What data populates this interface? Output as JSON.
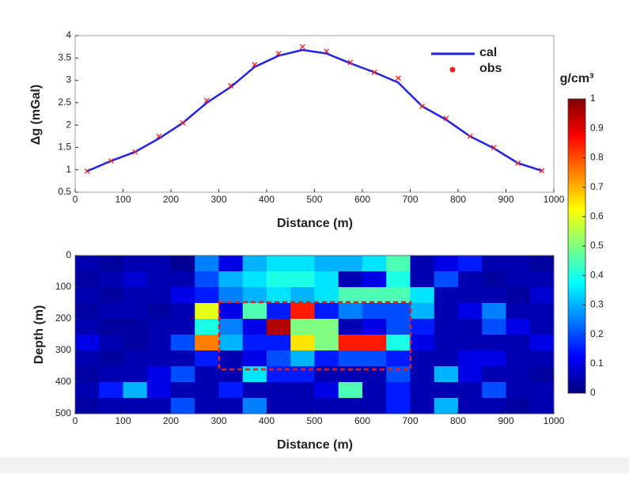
{
  "chart_data": [
    {
      "type": "line",
      "xlabel": "Distance (m)",
      "ylabel": "Δg (mGal)",
      "x": [
        25,
        75,
        125,
        175,
        225,
        275,
        325,
        375,
        425,
        475,
        525,
        575,
        625,
        675,
        725,
        775,
        825,
        875,
        925,
        975
      ],
      "series": [
        {
          "name": "cal",
          "color": "#2323e6",
          "mode": "line",
          "values": [
            0.97,
            1.2,
            1.4,
            1.7,
            2.05,
            2.5,
            2.85,
            3.3,
            3.55,
            3.68,
            3.6,
            3.38,
            3.18,
            2.95,
            2.42,
            2.12,
            1.75,
            1.48,
            1.15,
            0.98
          ]
        },
        {
          "name": "obs",
          "color": "#ee2222",
          "mode": "markers",
          "values": [
            0.97,
            1.2,
            1.4,
            1.75,
            2.05,
            2.55,
            2.88,
            3.35,
            3.6,
            3.75,
            3.65,
            3.4,
            3.18,
            3.05,
            2.42,
            2.15,
            1.75,
            1.5,
            1.15,
            0.98
          ]
        }
      ],
      "xlim": [
        0,
        1000
      ],
      "xticks": [
        0,
        100,
        200,
        300,
        400,
        500,
        600,
        700,
        800,
        900,
        1000
      ],
      "ylim": [
        0.5,
        4
      ],
      "yticks": [
        0.5,
        1,
        1.5,
        2,
        2.5,
        3,
        3.5,
        4
      ]
    },
    {
      "type": "heatmap",
      "xlabel": "Distance (m)",
      "ylabel": "Depth (m)",
      "x": [
        25,
        75,
        125,
        175,
        225,
        275,
        325,
        375,
        425,
        475,
        525,
        575,
        625,
        675,
        725,
        775,
        825,
        875,
        925,
        975
      ],
      "y": [
        25,
        75,
        125,
        175,
        225,
        275,
        325,
        375,
        425,
        475
      ],
      "values": [
        [
          0.05,
          0.03,
          0.05,
          0.05,
          0.02,
          0.25,
          0.1,
          0.3,
          0.35,
          0.35,
          0.3,
          0.3,
          0.35,
          0.45,
          0.05,
          0.1,
          0.15,
          0.05,
          0.05,
          0.03
        ],
        [
          0.03,
          0.05,
          0.08,
          0.05,
          0.05,
          0.2,
          0.3,
          0.35,
          0.4,
          0.4,
          0.35,
          0.05,
          0.1,
          0.4,
          0.05,
          0.2,
          0.05,
          0.03,
          0.05,
          0.05
        ],
        [
          0.05,
          0.03,
          0.05,
          0.05,
          0.1,
          0.15,
          0.25,
          0.3,
          0.35,
          0.3,
          0.35,
          0.45,
          0.45,
          0.45,
          0.35,
          0.05,
          0.05,
          0.05,
          0.03,
          0.08
        ],
        [
          0.03,
          0.05,
          0.05,
          0.03,
          0.05,
          0.6,
          0.1,
          0.45,
          0.15,
          0.85,
          0.15,
          0.25,
          0.2,
          0.2,
          0.3,
          0.05,
          0.1,
          0.25,
          0.05,
          0.05
        ],
        [
          0.05,
          0.03,
          0.03,
          0.05,
          0.05,
          0.4,
          0.25,
          0.1,
          0.95,
          0.5,
          0.5,
          0.05,
          0.1,
          0.2,
          0.15,
          0.05,
          0.05,
          0.2,
          0.1,
          0.05
        ],
        [
          0.1,
          0.05,
          0.03,
          0.05,
          0.2,
          0.75,
          0.3,
          0.15,
          0.15,
          0.65,
          0.5,
          0.85,
          0.85,
          0.4,
          0.1,
          0.05,
          0.05,
          0.05,
          0.05,
          0.1
        ],
        [
          0.05,
          0.03,
          0.05,
          0.05,
          0.05,
          0.15,
          0.05,
          0.1,
          0.2,
          0.3,
          0.15,
          0.2,
          0.2,
          0.15,
          0.05,
          0.05,
          0.1,
          0.1,
          0.05,
          0.05
        ],
        [
          0.03,
          0.05,
          0.05,
          0.1,
          0.2,
          0.05,
          0.05,
          0.35,
          0.15,
          0.15,
          0.05,
          0.05,
          0.05,
          0.2,
          0.05,
          0.3,
          0.1,
          0.05,
          0.05,
          0.03
        ],
        [
          0.05,
          0.15,
          0.3,
          0.1,
          0.05,
          0.05,
          0.15,
          0.05,
          0.05,
          0.05,
          0.1,
          0.45,
          0.05,
          0.15,
          0.05,
          0.05,
          0.05,
          0.2,
          0.05,
          0.05
        ],
        [
          0.03,
          0.05,
          0.05,
          0.05,
          0.2,
          0.05,
          0.05,
          0.25,
          0.05,
          0.05,
          0.05,
          0.05,
          0.05,
          0.15,
          0.05,
          0.3,
          0.05,
          0.05,
          0.03,
          0.05
        ]
      ],
      "xlim": [
        0,
        1000
      ],
      "xticks": [
        0,
        100,
        200,
        300,
        400,
        500,
        600,
        700,
        800,
        900,
        1000
      ],
      "ylim": [
        0,
        500
      ],
      "yticks": [
        0,
        100,
        200,
        300,
        400,
        500
      ],
      "y_inverted": true,
      "colormap": "jet",
      "colorbar": {
        "label": "g/cm³",
        "lim": [
          0,
          1
        ],
        "ticks": [
          0,
          0.1,
          0.2,
          0.3,
          0.4,
          0.5,
          0.6,
          0.7,
          0.8,
          0.9,
          1
        ]
      }
    }
  ]
}
